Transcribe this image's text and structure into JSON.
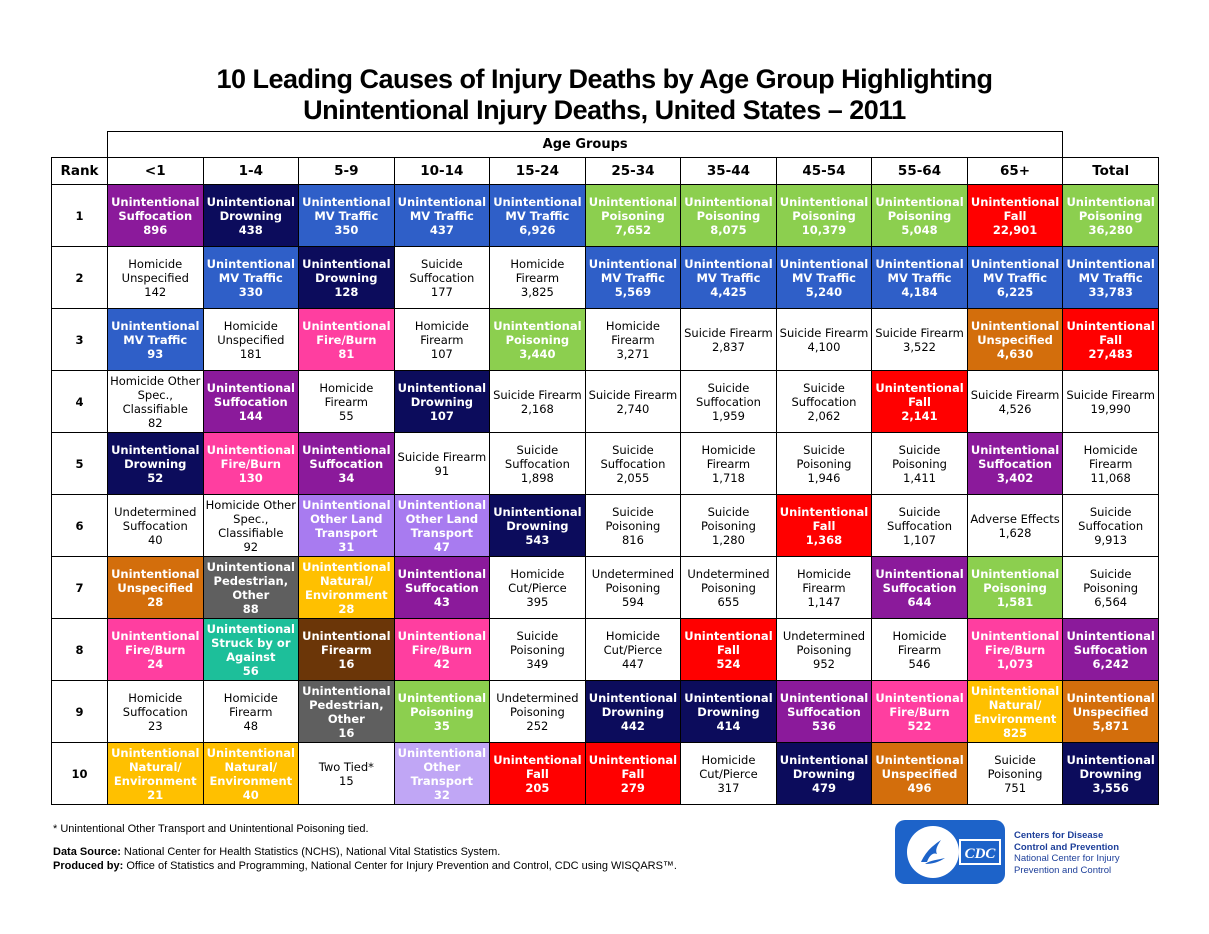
{
  "title": {
    "line1": "10 Leading Causes of Injury Deaths by Age Group Highlighting",
    "line2": "Unintentional Injury Deaths, United States – 2011"
  },
  "header": {
    "age_groups_label": "Age Groups",
    "rank_label": "Rank",
    "columns": [
      "<1",
      "1-4",
      "5-9",
      "10-14",
      "15-24",
      "25-34",
      "35-44",
      "45-54",
      "55-64",
      "65+",
      "Total"
    ]
  },
  "colors": {
    "suffocation": "#8b1a9b",
    "drowning": "#0c0c5c",
    "mv_traffic": "#2f5fc8",
    "poisoning": "#8ccf4f",
    "fall": "#ff0000",
    "fire_burn": "#ff3ea0",
    "unspecified": "#d36e0c",
    "other_land_transport": "#a87bf0",
    "natural_environment": "#ffc000",
    "pedestrian_other": "#5f5f5f",
    "struck_by": "#1dbf9a",
    "firearm": "#6b3608",
    "other_transport": "#c0a6f5",
    "plain": "#ffffff"
  },
  "rows": [
    {
      "rank": "1",
      "cells": [
        {
          "cause": "Unintentional Suffocation",
          "deaths": "896",
          "color": "suffocation"
        },
        {
          "cause": "Unintentional Drowning",
          "deaths": "438",
          "color": "drowning"
        },
        {
          "cause": "Unintentional MV Traffic",
          "deaths": "350",
          "color": "mv_traffic"
        },
        {
          "cause": "Unintentional MV Traffic",
          "deaths": "437",
          "color": "mv_traffic"
        },
        {
          "cause": "Unintentional MV Traffic",
          "deaths": "6,926",
          "color": "mv_traffic"
        },
        {
          "cause": "Unintentional Poisoning",
          "deaths": "7,652",
          "color": "poisoning"
        },
        {
          "cause": "Unintentional Poisoning",
          "deaths": "8,075",
          "color": "poisoning"
        },
        {
          "cause": "Unintentional Poisoning",
          "deaths": "10,379",
          "color": "poisoning"
        },
        {
          "cause": "Unintentional Poisoning",
          "deaths": "5,048",
          "color": "poisoning"
        },
        {
          "cause": "Unintentional Fall",
          "deaths": "22,901",
          "color": "fall"
        },
        {
          "cause": "Unintentional Poisoning",
          "deaths": "36,280",
          "color": "poisoning"
        }
      ]
    },
    {
      "rank": "2",
      "cells": [
        {
          "cause": "Homicide Unspecified",
          "deaths": "142",
          "color": "plain"
        },
        {
          "cause": "Unintentional MV Traffic",
          "deaths": "330",
          "color": "mv_traffic"
        },
        {
          "cause": "Unintentional Drowning",
          "deaths": "128",
          "color": "drowning"
        },
        {
          "cause": "Suicide Suffocation",
          "deaths": "177",
          "color": "plain"
        },
        {
          "cause": "Homicide Firearm",
          "deaths": "3,825",
          "color": "plain"
        },
        {
          "cause": "Unintentional MV Traffic",
          "deaths": "5,569",
          "color": "mv_traffic"
        },
        {
          "cause": "Unintentional MV Traffic",
          "deaths": "4,425",
          "color": "mv_traffic"
        },
        {
          "cause": "Unintentional MV Traffic",
          "deaths": "5,240",
          "color": "mv_traffic"
        },
        {
          "cause": "Unintentional MV Traffic",
          "deaths": "4,184",
          "color": "mv_traffic"
        },
        {
          "cause": "Unintentional MV Traffic",
          "deaths": "6,225",
          "color": "mv_traffic"
        },
        {
          "cause": "Unintentional MV Traffic",
          "deaths": "33,783",
          "color": "mv_traffic"
        }
      ]
    },
    {
      "rank": "3",
      "cells": [
        {
          "cause": "Unintentional MV Traffic",
          "deaths": "93",
          "color": "mv_traffic"
        },
        {
          "cause": "Homicide Unspecified",
          "deaths": "181",
          "color": "plain"
        },
        {
          "cause": "Unintentional Fire/Burn",
          "deaths": "81",
          "color": "fire_burn"
        },
        {
          "cause": "Homicide Firearm",
          "deaths": "107",
          "color": "plain"
        },
        {
          "cause": "Unintentional Poisoning",
          "deaths": "3,440",
          "color": "poisoning"
        },
        {
          "cause": "Homicide Firearm",
          "deaths": "3,271",
          "color": "plain"
        },
        {
          "cause": "Suicide Firearm",
          "deaths": "2,837",
          "color": "plain"
        },
        {
          "cause": "Suicide Firearm",
          "deaths": "4,100",
          "color": "plain"
        },
        {
          "cause": "Suicide Firearm",
          "deaths": "3,522",
          "color": "plain"
        },
        {
          "cause": "Unintentional Unspecified",
          "deaths": "4,630",
          "color": "unspecified"
        },
        {
          "cause": "Unintentional Fall",
          "deaths": "27,483",
          "color": "fall"
        }
      ]
    },
    {
      "rank": "4",
      "cells": [
        {
          "cause": "Homicide Other Spec., Classifiable",
          "deaths": "82",
          "color": "plain"
        },
        {
          "cause": "Unintentional Suffocation",
          "deaths": "144",
          "color": "suffocation"
        },
        {
          "cause": "Homicide Firearm",
          "deaths": "55",
          "color": "plain"
        },
        {
          "cause": "Unintentional Drowning",
          "deaths": "107",
          "color": "drowning"
        },
        {
          "cause": "Suicide Firearm",
          "deaths": "2,168",
          "color": "plain"
        },
        {
          "cause": "Suicide Firearm",
          "deaths": "2,740",
          "color": "plain"
        },
        {
          "cause": "Suicide Suffocation",
          "deaths": "1,959",
          "color": "plain"
        },
        {
          "cause": "Suicide Suffocation",
          "deaths": "2,062",
          "color": "plain"
        },
        {
          "cause": "Unintentional Fall",
          "deaths": "2,141",
          "color": "fall"
        },
        {
          "cause": "Suicide Firearm",
          "deaths": "4,526",
          "color": "plain"
        },
        {
          "cause": "Suicide Firearm",
          "deaths": "19,990",
          "color": "plain"
        }
      ]
    },
    {
      "rank": "5",
      "cells": [
        {
          "cause": "Unintentional Drowning",
          "deaths": "52",
          "color": "drowning"
        },
        {
          "cause": "Unintentional Fire/Burn",
          "deaths": "130",
          "color": "fire_burn"
        },
        {
          "cause": "Unintentional Suffocation",
          "deaths": "34",
          "color": "suffocation"
        },
        {
          "cause": "Suicide Firearm",
          "deaths": "91",
          "color": "plain"
        },
        {
          "cause": "Suicide Suffocation",
          "deaths": "1,898",
          "color": "plain"
        },
        {
          "cause": "Suicide Suffocation",
          "deaths": "2,055",
          "color": "plain"
        },
        {
          "cause": "Homicide Firearm",
          "deaths": "1,718",
          "color": "plain"
        },
        {
          "cause": "Suicide Poisoning",
          "deaths": "1,946",
          "color": "plain"
        },
        {
          "cause": "Suicide Poisoning",
          "deaths": "1,411",
          "color": "plain"
        },
        {
          "cause": "Unintentional Suffocation",
          "deaths": "3,402",
          "color": "suffocation"
        },
        {
          "cause": "Homicide Firearm",
          "deaths": "11,068",
          "color": "plain"
        }
      ]
    },
    {
      "rank": "6",
      "cells": [
        {
          "cause": "Undetermined Suffocation",
          "deaths": "40",
          "color": "plain"
        },
        {
          "cause": "Homicide Other Spec., Classifiable",
          "deaths": "92",
          "color": "plain"
        },
        {
          "cause": "Unintentional Other Land Transport",
          "deaths": "31",
          "color": "other_land_transport"
        },
        {
          "cause": "Unintentional Other Land Transport",
          "deaths": "47",
          "color": "other_land_transport"
        },
        {
          "cause": "Unintentional Drowning",
          "deaths": "543",
          "color": "drowning"
        },
        {
          "cause": "Suicide Poisoning",
          "deaths": "816",
          "color": "plain"
        },
        {
          "cause": "Suicide Poisoning",
          "deaths": "1,280",
          "color": "plain"
        },
        {
          "cause": "Unintentional Fall",
          "deaths": "1,368",
          "color": "fall"
        },
        {
          "cause": "Suicide Suffocation",
          "deaths": "1,107",
          "color": "plain"
        },
        {
          "cause": "Adverse Effects",
          "deaths": "1,628",
          "color": "plain"
        },
        {
          "cause": "Suicide Suffocation",
          "deaths": "9,913",
          "color": "plain"
        }
      ]
    },
    {
      "rank": "7",
      "cells": [
        {
          "cause": "Unintentional Unspecified",
          "deaths": "28",
          "color": "unspecified"
        },
        {
          "cause": "Unintentional Pedestrian, Other",
          "deaths": "88",
          "color": "pedestrian_other"
        },
        {
          "cause": "Unintentional Natural/ Environment",
          "deaths": "28",
          "color": "natural_environment"
        },
        {
          "cause": "Unintentional Suffocation",
          "deaths": "43",
          "color": "suffocation"
        },
        {
          "cause": "Homicide Cut/Pierce",
          "deaths": "395",
          "color": "plain"
        },
        {
          "cause": "Undetermined Poisoning",
          "deaths": "594",
          "color": "plain"
        },
        {
          "cause": "Undetermined Poisoning",
          "deaths": "655",
          "color": "plain"
        },
        {
          "cause": "Homicide Firearm",
          "deaths": "1,147",
          "color": "plain"
        },
        {
          "cause": "Unintentional Suffocation",
          "deaths": "644",
          "color": "suffocation"
        },
        {
          "cause": "Unintentional Poisoning",
          "deaths": "1,581",
          "color": "poisoning"
        },
        {
          "cause": "Suicide Poisoning",
          "deaths": "6,564",
          "color": "plain"
        }
      ]
    },
    {
      "rank": "8",
      "cells": [
        {
          "cause": "Unintentional Fire/Burn",
          "deaths": "24",
          "color": "fire_burn"
        },
        {
          "cause": "Unintentional Struck by or Against",
          "deaths": "56",
          "color": "struck_by"
        },
        {
          "cause": "Unintentional Firearm",
          "deaths": "16",
          "color": "firearm"
        },
        {
          "cause": "Unintentional Fire/Burn",
          "deaths": "42",
          "color": "fire_burn"
        },
        {
          "cause": "Suicide Poisoning",
          "deaths": "349",
          "color": "plain"
        },
        {
          "cause": "Homicide Cut/Pierce",
          "deaths": "447",
          "color": "plain"
        },
        {
          "cause": "Unintentional Fall",
          "deaths": "524",
          "color": "fall"
        },
        {
          "cause": "Undetermined Poisoning",
          "deaths": "952",
          "color": "plain"
        },
        {
          "cause": "Homicide Firearm",
          "deaths": "546",
          "color": "plain"
        },
        {
          "cause": "Unintentional Fire/Burn",
          "deaths": "1,073",
          "color": "fire_burn"
        },
        {
          "cause": "Unintentional Suffocation",
          "deaths": "6,242",
          "color": "suffocation"
        }
      ]
    },
    {
      "rank": "9",
      "cells": [
        {
          "cause": "Homicide Suffocation",
          "deaths": "23",
          "color": "plain"
        },
        {
          "cause": "Homicide Firearm",
          "deaths": "48",
          "color": "plain"
        },
        {
          "cause": "Unintentional Pedestrian, Other",
          "deaths": "16",
          "color": "pedestrian_other"
        },
        {
          "cause": "Unintentional Poisoning",
          "deaths": "35",
          "color": "poisoning"
        },
        {
          "cause": "Undetermined Poisoning",
          "deaths": "252",
          "color": "plain"
        },
        {
          "cause": "Unintentional Drowning",
          "deaths": "442",
          "color": "drowning"
        },
        {
          "cause": "Unintentional Drowning",
          "deaths": "414",
          "color": "drowning"
        },
        {
          "cause": "Unintentional Suffocation",
          "deaths": "536",
          "color": "suffocation"
        },
        {
          "cause": "Unintentional Fire/Burn",
          "deaths": "522",
          "color": "fire_burn"
        },
        {
          "cause": "Unintentional Natural/ Environment",
          "deaths": "825",
          "color": "natural_environment"
        },
        {
          "cause": "Unintentional Unspecified",
          "deaths": "5,871",
          "color": "unspecified"
        }
      ]
    },
    {
      "rank": "10",
      "cells": [
        {
          "cause": "Unintentional Natural/ Environment",
          "deaths": "21",
          "color": "natural_environment"
        },
        {
          "cause": "Unintentional Natural/ Environment",
          "deaths": "40",
          "color": "natural_environment"
        },
        {
          "cause": "Two Tied*",
          "deaths": "15",
          "color": "plain"
        },
        {
          "cause": "Unintentional Other Transport",
          "deaths": "32",
          "color": "other_transport"
        },
        {
          "cause": "Unintentional Fall",
          "deaths": "205",
          "color": "fall"
        },
        {
          "cause": "Unintentional Fall",
          "deaths": "279",
          "color": "fall"
        },
        {
          "cause": "Homicide Cut/Pierce",
          "deaths": "317",
          "color": "plain"
        },
        {
          "cause": "Unintentional Drowning",
          "deaths": "479",
          "color": "drowning"
        },
        {
          "cause": "Unintentional Unspecified",
          "deaths": "496",
          "color": "unspecified"
        },
        {
          "cause": "Suicide Poisoning",
          "deaths": "751",
          "color": "plain"
        },
        {
          "cause": "Unintentional Drowning",
          "deaths": "3,556",
          "color": "drowning"
        }
      ]
    }
  ],
  "footnote": "* Unintentional Other Transport and Unintentional Poisoning tied.",
  "source": {
    "data_source_label": "Data Source:",
    "data_source_text": "National Center for Health Statistics (NCHS), National Vital Statistics System.",
    "produced_by_label": "Produced by:",
    "produced_by_text": "Office of Statistics and Programming, National Center for Injury Prevention and Control, CDC using WISQARS™."
  },
  "logo": {
    "mark": "CDC",
    "line1": "Centers for Disease",
    "line2": "Control and Prevention",
    "line3": "National Center for Injury",
    "line4": "Prevention and Control"
  }
}
